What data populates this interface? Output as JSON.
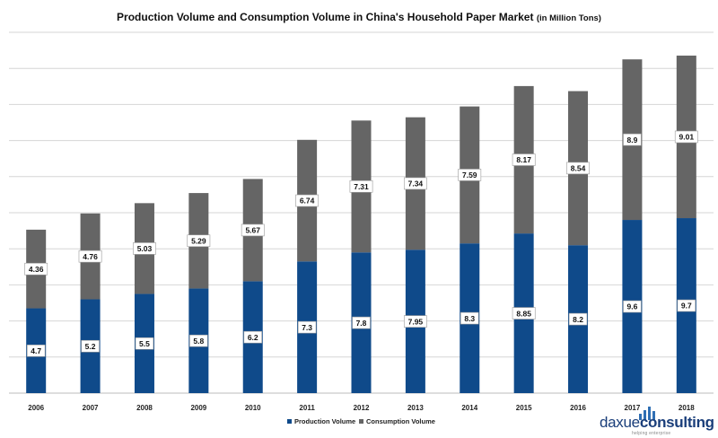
{
  "chart_data": {
    "type": "bar",
    "stacked": true,
    "title": "Production Volume and Consumption Volume in China's Household Paper Market",
    "title_unit_note": "(in Million Tons)",
    "categories": [
      "2006",
      "2007",
      "2008",
      "2009",
      "2010",
      "2011",
      "2012",
      "2013",
      "2014",
      "2015",
      "2016",
      "2017",
      "2018"
    ],
    "series": [
      {
        "name": "Production Volume",
        "color": "#0f4a8a",
        "values": [
          4.7,
          5.2,
          5.5,
          5.8,
          6.2,
          7.3,
          7.8,
          7.95,
          8.3,
          8.85,
          8.2,
          9.6,
          9.7
        ]
      },
      {
        "name": "Consumption Volume",
        "color": "#656565",
        "values": [
          4.36,
          4.76,
          5.03,
          5.29,
          5.67,
          6.74,
          7.31,
          7.34,
          7.59,
          8.17,
          8.54,
          8.9,
          9.01
        ]
      }
    ],
    "value_labels": {
      "Production Volume": [
        "4.7",
        "5.2",
        "5.5",
        "5.8",
        "6.2",
        "7.3",
        "7.8",
        "7.95",
        "8.3",
        "8.85",
        "8.2",
        "9.6",
        "9.7"
      ],
      "Consumption Volume": [
        "4.36",
        "4.76",
        "5.03",
        "5.29",
        "5.67",
        "6.74",
        "7.31",
        "7.34",
        "7.59",
        "8.17",
        "8.54",
        "8.9",
        "9.01"
      ]
    },
    "ylim": [
      0,
      20
    ],
    "y_gridline_step": 2,
    "y_tick_labels_shown": false,
    "grid": true,
    "legend_position": "bottom-center"
  },
  "logo": {
    "brand_part1": "daxue",
    "brand_part2": "consulting",
    "tagline": "helping enterprise"
  }
}
